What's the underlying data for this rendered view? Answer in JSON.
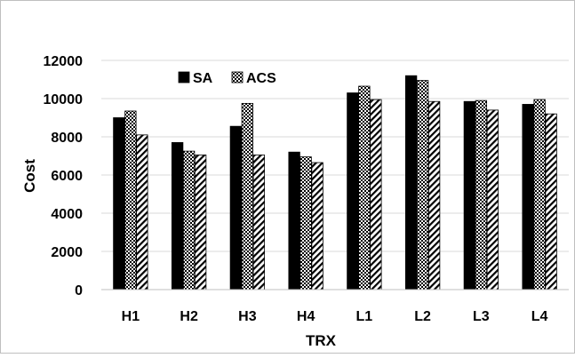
{
  "chart_data": {
    "type": "bar",
    "categories": [
      "H1",
      "H2",
      "H3",
      "H4",
      "L1",
      "L2",
      "L3",
      "L4"
    ],
    "series": [
      {
        "name": "SA",
        "values": [
          9000,
          7700,
          8550,
          7200,
          10300,
          11200,
          9850,
          9700
        ],
        "pattern": "solid",
        "color": "#000000"
      },
      {
        "name": "ACS",
        "values": [
          9350,
          7250,
          9750,
          6950,
          10650,
          10950,
          9900,
          9950
        ],
        "pattern": "checker",
        "color": "#000000"
      },
      {
        "name": "",
        "values": [
          8100,
          7050,
          7050,
          6650,
          9950,
          9850,
          9400,
          9200
        ],
        "pattern": "diagonal",
        "color": "#000000"
      }
    ],
    "xlabel": "TRX",
    "ylabel": "Cost",
    "ylim": [
      0,
      12000
    ],
    "yticks": [
      "0",
      "2000",
      "4000",
      "6000",
      "8000",
      "10000",
      "12000"
    ],
    "grid": "horizontal",
    "legend": "top-left"
  }
}
